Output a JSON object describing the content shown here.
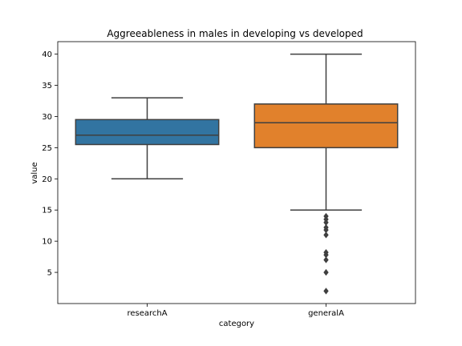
{
  "chart_data": {
    "type": "box",
    "title": "Aggreeableness in males in developing vs developed",
    "xlabel": "category",
    "ylabel": "value",
    "ylim": [
      0,
      42
    ],
    "yticks": [
      5,
      10,
      15,
      20,
      25,
      30,
      35,
      40
    ],
    "categories": [
      "researchA",
      "generalA"
    ],
    "series": [
      {
        "category": "researchA",
        "color": "#3274a1",
        "whisker_low": 20,
        "q1": 25.5,
        "median": 27,
        "q3": 29.5,
        "whisker_high": 33,
        "outliers": []
      },
      {
        "category": "generalA",
        "color": "#e1812c",
        "whisker_low": 15,
        "q1": 25,
        "median": 29,
        "q3": 32,
        "whisker_high": 40,
        "outliers": [
          14,
          13.5,
          13,
          12.2,
          11.8,
          11,
          8.2,
          7.8,
          7,
          5,
          2
        ]
      }
    ],
    "grid": false,
    "legend": "none"
  }
}
